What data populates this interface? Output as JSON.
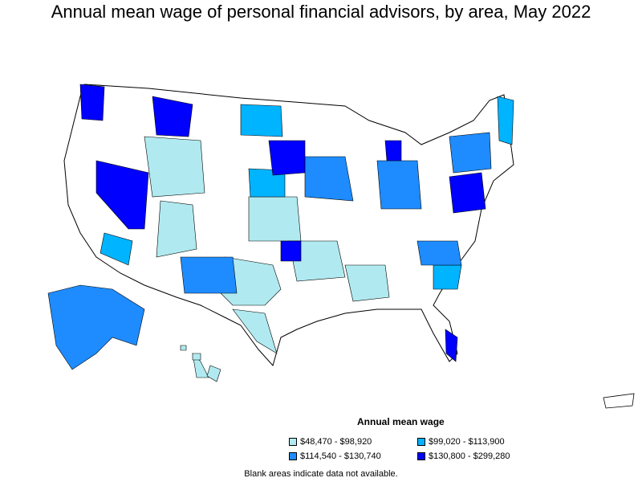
{
  "title": "Annual mean wage of personal financial advisors, by area, May 2022",
  "legend": {
    "title": "Annual mean wage",
    "items": [
      {
        "label": "$48,470 - $98,920",
        "color": "#b0eaf0"
      },
      {
        "label": "$99,020 - $113,900",
        "color": "#00b4ff"
      },
      {
        "label": "$114,540 - $130,740",
        "color": "#1e8cff"
      },
      {
        "label": "$130,800 - $299,280",
        "color": "#0000ff"
      }
    ]
  },
  "note": "Blank areas indicate data not available."
}
